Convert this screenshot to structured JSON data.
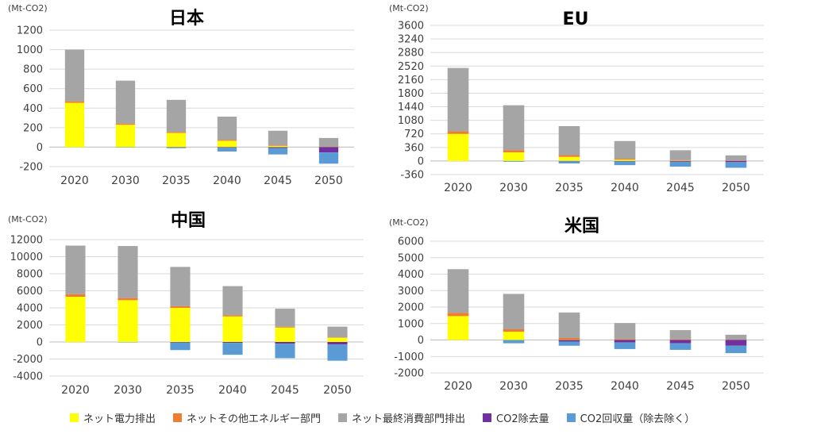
{
  "legend": [
    {
      "label": "ネット電力排出",
      "color": "#ffff00"
    },
    {
      "label": "ネットその他エネルギー部門",
      "color": "#ed7d31"
    },
    {
      "label": "ネット最終消費部門排出",
      "color": "#a5a5a5"
    },
    {
      "label": "CO2除去量",
      "color": "#7030a0"
    },
    {
      "label": "CO2回収量（除去除く）",
      "color": "#5b9bd5"
    }
  ],
  "chart_data": [
    {
      "type": "bar",
      "stacked": true,
      "title": "日本",
      "unit": "(Mt-CO2)",
      "categories": [
        "2020",
        "2030",
        "2035",
        "2040",
        "2045",
        "2050"
      ],
      "ylim": [
        -200,
        1200
      ],
      "yticks": [
        -200,
        0,
        200,
        400,
        600,
        800,
        1000,
        1200
      ],
      "grid": true,
      "series": [
        {
          "name": "ネット電力排出",
          "values": [
            455,
            230,
            145,
            65,
            12,
            0
          ]
        },
        {
          "name": "ネットその他エネルギー部門",
          "values": [
            15,
            12,
            10,
            8,
            6,
            4
          ]
        },
        {
          "name": "ネット最終消費部門排出",
          "values": [
            530,
            440,
            330,
            240,
            150,
            90
          ]
        },
        {
          "name": "CO2除去量",
          "values": [
            0,
            0,
            -3,
            -5,
            -10,
            -55
          ]
        },
        {
          "name": "CO2回収量（除去除く）",
          "values": [
            0,
            -2,
            -8,
            -40,
            -65,
            -115
          ]
        }
      ]
    },
    {
      "type": "bar",
      "stacked": true,
      "title": "EU",
      "unit": "(Mt-CO2)",
      "categories": [
        "2020",
        "2030",
        "2035",
        "2040",
        "2045",
        "2050"
      ],
      "ylim": [
        -360,
        3600
      ],
      "yticks": [
        -360,
        0,
        360,
        720,
        1080,
        1440,
        1800,
        2160,
        2520,
        2880,
        3240,
        3600
      ],
      "grid": true,
      "series": [
        {
          "name": "ネット電力排出",
          "values": [
            720,
            230,
            110,
            35,
            10,
            0
          ]
        },
        {
          "name": "ネットその他エネルギー部門",
          "values": [
            70,
            60,
            45,
            25,
            15,
            10
          ]
        },
        {
          "name": "ネット最終消費部門排出",
          "values": [
            1680,
            1190,
            770,
            470,
            260,
            140
          ]
        },
        {
          "name": "CO2除去量",
          "values": [
            0,
            0,
            -5,
            -10,
            -20,
            -30
          ]
        },
        {
          "name": "CO2回収量（除去除く）",
          "values": [
            0,
            -20,
            -60,
            -100,
            -130,
            -150
          ]
        }
      ]
    },
    {
      "type": "bar",
      "stacked": true,
      "title": "中国",
      "unit": "(Mt-CO2)",
      "categories": [
        "2020",
        "2030",
        "2035",
        "2040",
        "2045",
        "2050"
      ],
      "ylim": [
        -4000,
        12000
      ],
      "yticks": [
        -4000,
        -2000,
        0,
        2000,
        4000,
        6000,
        8000,
        10000,
        12000
      ],
      "grid": true,
      "series": [
        {
          "name": "ネット電力排出",
          "values": [
            5300,
            4900,
            4000,
            3000,
            1700,
            500
          ]
        },
        {
          "name": "ネットその他エネルギー部門",
          "values": [
            300,
            250,
            200,
            150,
            100,
            50
          ]
        },
        {
          "name": "ネット最終消費部門排出",
          "values": [
            5700,
            6100,
            4600,
            3400,
            2100,
            1250
          ]
        },
        {
          "name": "CO2除去量",
          "values": [
            0,
            0,
            -50,
            -100,
            -200,
            -300
          ]
        },
        {
          "name": "CO2回収量（除去除く）",
          "values": [
            0,
            -50,
            -900,
            -1400,
            -1700,
            -1900
          ]
        }
      ]
    },
    {
      "type": "bar",
      "stacked": true,
      "title": "米国",
      "unit": "(Mt-CO2)",
      "categories": [
        "2020",
        "2030",
        "2035",
        "2040",
        "2045",
        "2050"
      ],
      "ylim": [
        -2000,
        6000
      ],
      "yticks": [
        -2000,
        -1000,
        0,
        1000,
        2000,
        3000,
        4000,
        5000,
        6000
      ],
      "grid": true,
      "series": [
        {
          "name": "ネット電力排出",
          "values": [
            1450,
            500,
            20,
            0,
            0,
            0
          ]
        },
        {
          "name": "ネットその他エネルギー部門",
          "values": [
            200,
            150,
            100,
            60,
            40,
            20
          ]
        },
        {
          "name": "ネット最終消費部門排出",
          "values": [
            2650,
            2150,
            1550,
            970,
            560,
            300
          ]
        },
        {
          "name": "CO2除去量",
          "values": [
            0,
            0,
            -100,
            -150,
            -200,
            -350
          ]
        },
        {
          "name": "CO2回収量（除去除く）",
          "values": [
            0,
            -200,
            -250,
            -400,
            -400,
            -450
          ]
        }
      ]
    }
  ]
}
